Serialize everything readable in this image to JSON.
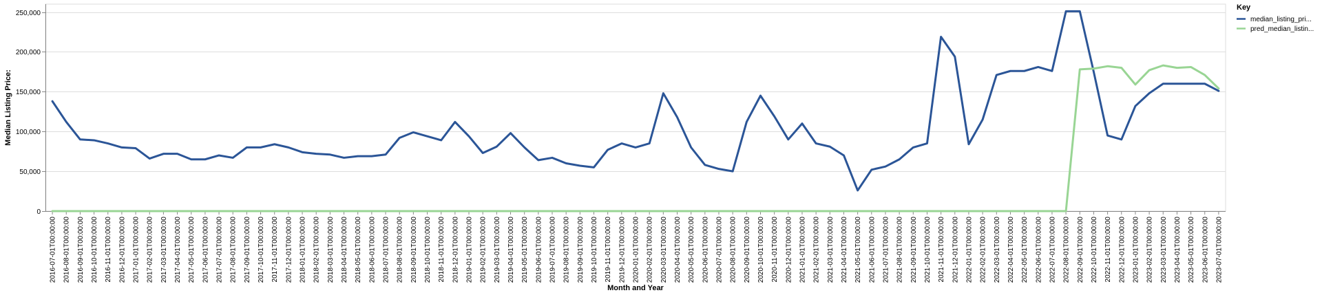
{
  "chart_data": {
    "type": "line",
    "xlabel": "Month and Year",
    "ylabel": "Median Listing Price:",
    "ylim": [
      0,
      260000
    ],
    "y_ticks": [
      0,
      50000,
      100000,
      150000,
      200000,
      250000
    ],
    "y_tick_labels": [
      "0",
      "50,000",
      "100,000",
      "150,000",
      "200,000",
      "250,000"
    ],
    "grid": true,
    "legend": {
      "title": "Key",
      "position": "top-right"
    },
    "x": [
      "2016-07-01T00:00:00",
      "2016-08-01T00:00:00",
      "2016-09-01T00:00:00",
      "2016-10-01T00:00:00",
      "2016-11-01T00:00:00",
      "2016-12-01T00:00:00",
      "2017-01-01T00:00:00",
      "2017-02-01T00:00:00",
      "2017-03-01T00:00:00",
      "2017-04-01T00:00:00",
      "2017-05-01T00:00:00",
      "2017-06-01T00:00:00",
      "2017-07-01T00:00:00",
      "2017-08-01T00:00:00",
      "2017-09-01T00:00:00",
      "2017-10-01T00:00:00",
      "2017-11-01T00:00:00",
      "2017-12-01T00:00:00",
      "2018-01-01T00:00:00",
      "2018-02-01T00:00:00",
      "2018-03-01T00:00:00",
      "2018-04-01T00:00:00",
      "2018-05-01T00:00:00",
      "2018-06-01T00:00:00",
      "2018-07-01T00:00:00",
      "2018-08-01T00:00:00",
      "2018-09-01T00:00:00",
      "2018-10-01T00:00:00",
      "2018-11-01T00:00:00",
      "2018-12-01T00:00:00",
      "2019-01-01T00:00:00",
      "2019-02-01T00:00:00",
      "2019-03-01T00:00:00",
      "2019-04-01T00:00:00",
      "2019-05-01T00:00:00",
      "2019-06-01T00:00:00",
      "2019-07-01T00:00:00",
      "2019-08-01T00:00:00",
      "2019-09-01T00:00:00",
      "2019-10-01T00:00:00",
      "2019-11-01T00:00:00",
      "2019-12-01T00:00:00",
      "2020-01-01T00:00:00",
      "2020-02-01T00:00:00",
      "2020-03-01T00:00:00",
      "2020-04-01T00:00:00",
      "2020-05-01T00:00:00",
      "2020-06-01T00:00:00",
      "2020-07-01T00:00:00",
      "2020-08-01T00:00:00",
      "2020-09-01T00:00:00",
      "2020-10-01T00:00:00",
      "2020-11-01T00:00:00",
      "2020-12-01T00:00:00",
      "2021-01-01T00:00:00",
      "2021-02-01T00:00:00",
      "2021-03-01T00:00:00",
      "2021-04-01T00:00:00",
      "2021-05-01T00:00:00",
      "2021-06-01T00:00:00",
      "2021-07-01T00:00:00",
      "2021-08-01T00:00:00",
      "2021-09-01T00:00:00",
      "2021-10-01T00:00:00",
      "2021-11-01T00:00:00",
      "2021-12-01T00:00:00",
      "2022-01-01T00:00:00",
      "2022-02-01T00:00:00",
      "2022-03-01T00:00:00",
      "2022-04-01T00:00:00",
      "2022-05-01T00:00:00",
      "2022-06-01T00:00:00",
      "2022-07-01T00:00:00",
      "2022-08-01T00:00:00",
      "2022-09-01T00:00:00",
      "2022-10-01T00:00:00",
      "2022-11-01T00:00:00",
      "2022-12-01T00:00:00",
      "2023-01-01T00:00:00",
      "2023-02-01T00:00:00",
      "2023-03-01T00:00:00",
      "2023-04-01T00:00:00",
      "2023-05-01T00:00:00",
      "2023-06-01T00:00:00",
      "2023-07-01T00:00:00"
    ],
    "series": [
      {
        "name": "median_listing_pri...",
        "color": "#2b5597",
        "values": [
          138000,
          112000,
          90000,
          89000,
          85000,
          80000,
          79000,
          66000,
          72000,
          72000,
          65000,
          65000,
          70000,
          67000,
          80000,
          80000,
          84000,
          80000,
          74000,
          72000,
          71000,
          67000,
          69000,
          69000,
          71000,
          92000,
          99000,
          94000,
          89000,
          112000,
          94000,
          73000,
          81000,
          98000,
          80000,
          64000,
          67000,
          60000,
          57000,
          55000,
          77000,
          85000,
          80000,
          85000,
          148000,
          118000,
          80000,
          58000,
          53000,
          50000,
          112000,
          145000,
          119000,
          90000,
          110000,
          85000,
          81000,
          70000,
          26000,
          52000,
          56000,
          65000,
          80000,
          85000,
          219000,
          194000,
          84000,
          115000,
          171000,
          176000,
          176000,
          181000,
          176000,
          251000,
          251000,
          175000,
          95000,
          90000,
          132000,
          148000,
          160000,
          160000,
          160000,
          160000,
          151000
        ]
      },
      {
        "name": "pred_median_listin...",
        "color": "#99d594",
        "values": [
          0,
          0,
          0,
          0,
          0,
          0,
          0,
          0,
          0,
          0,
          0,
          0,
          0,
          0,
          0,
          0,
          0,
          0,
          0,
          0,
          0,
          0,
          0,
          0,
          0,
          0,
          0,
          0,
          0,
          0,
          0,
          0,
          0,
          0,
          0,
          0,
          0,
          0,
          0,
          0,
          0,
          0,
          0,
          0,
          0,
          0,
          0,
          0,
          0,
          0,
          0,
          0,
          0,
          0,
          0,
          0,
          0,
          0,
          0,
          0,
          0,
          0,
          0,
          0,
          0,
          0,
          0,
          0,
          0,
          0,
          0,
          0,
          0,
          0,
          178000,
          179000,
          182000,
          180000,
          159000,
          177000,
          183000,
          180000,
          181000,
          171000,
          154000
        ]
      }
    ]
  }
}
